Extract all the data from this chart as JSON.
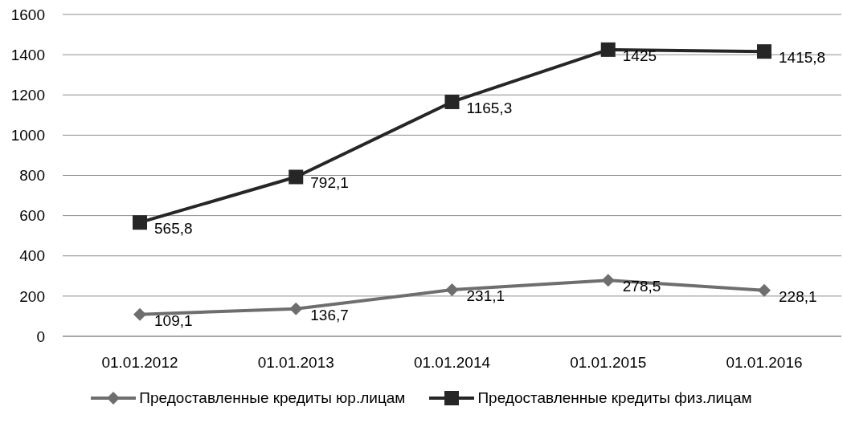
{
  "chart_data": {
    "type": "line",
    "categories": [
      "01.01.2012",
      "01.01.2013",
      "01.01.2014",
      "01.01.2015",
      "01.01.2016"
    ],
    "series": [
      {
        "name": "Предоставленные кредиты юр.лицам",
        "color": "#6e6e6e",
        "marker": "diamond",
        "values": [
          109.1,
          136.7,
          231.1,
          278.5,
          228.1
        ],
        "value_labels": [
          "109,1",
          "136,7",
          "231,1",
          "278,5",
          "228,1"
        ]
      },
      {
        "name": "Предоставленные кредиты физ.лицам",
        "color": "#262626",
        "marker": "square",
        "values": [
          565.8,
          792.1,
          1165.3,
          1425,
          1415.8
        ],
        "value_labels": [
          "565,8",
          "792,1",
          "1165,3",
          "1425",
          "1415,8"
        ]
      }
    ],
    "ylim": [
      0,
      1600
    ],
    "yticks": [
      0,
      200,
      400,
      600,
      800,
      1000,
      1200,
      1400,
      1600
    ],
    "grid": "y",
    "legend": "bottom",
    "line_style": "solid"
  }
}
